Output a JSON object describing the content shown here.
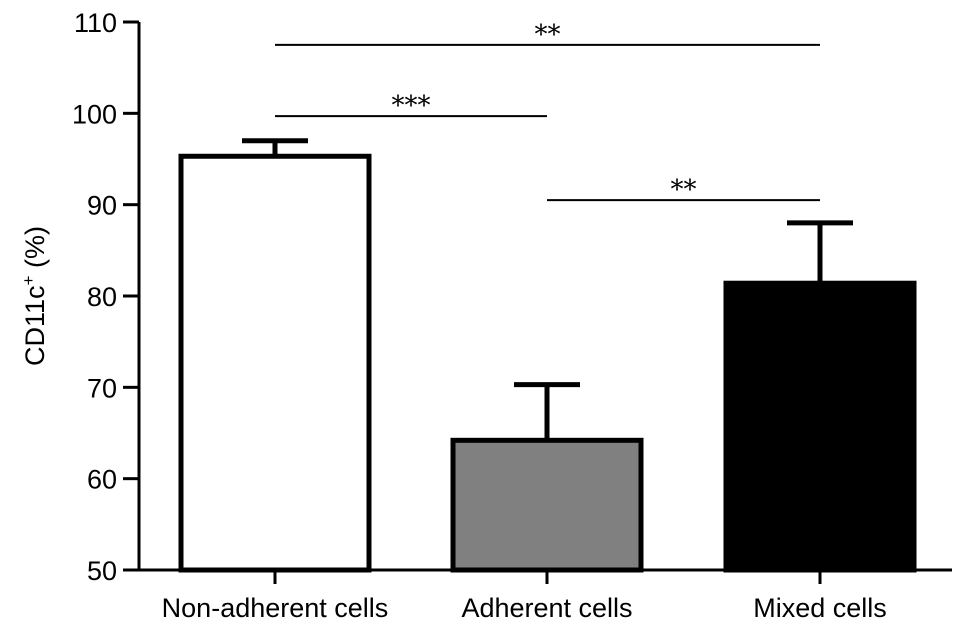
{
  "chart_data": {
    "type": "bar",
    "categories": [
      "Non-adherent cells",
      "Adherent cells",
      "Mixed cells"
    ],
    "values": [
      95.3,
      64.2,
      81.4
    ],
    "errors": [
      1.7,
      6.1,
      6.6
    ],
    "bar_colors": [
      "#ffffff",
      "#808080",
      "#000000"
    ],
    "ylabel": "CD11c",
    "ylabel_superscript": "+",
    "ylabel_suffix": " (%)",
    "ylim": [
      50,
      110
    ],
    "yticks": [
      50,
      60,
      70,
      80,
      90,
      100,
      110
    ],
    "significance": [
      {
        "from": 0,
        "to": 2,
        "y": 107.5,
        "label": "**"
      },
      {
        "from": 0,
        "to": 1,
        "y": 99.7,
        "label": "***"
      },
      {
        "from": 1,
        "to": 2,
        "y": 90.5,
        "label": "**"
      }
    ]
  }
}
